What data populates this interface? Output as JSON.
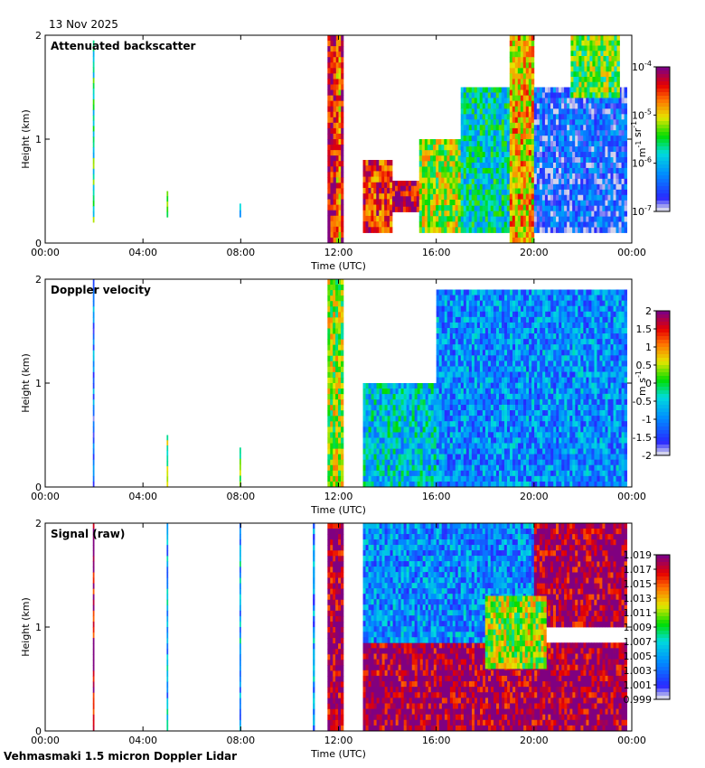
{
  "date_label": "13 Nov 2025",
  "footer": "Vehmasmaki 1.5 micron Doppler Lidar",
  "chart_data": [
    {
      "type": "heatmap",
      "title": "Attenuated backscatter",
      "xlabel": "Time (UTC)",
      "ylabel": "Height (km)",
      "x_ticks": [
        "00:00",
        "04:00",
        "08:00",
        "12:00",
        "16:00",
        "20:00",
        "00:00"
      ],
      "xlim_hours": [
        0,
        24
      ],
      "y_ticks": [
        "0",
        "1",
        "2"
      ],
      "ylim_km": [
        0,
        2
      ],
      "colorbar": {
        "scale": "log",
        "label": "m-1 sr-1",
        "label_base": [
          "m",
          "sr"
        ],
        "label_exp": [
          "-1",
          "-1"
        ],
        "ticks": [
          {
            "base": "10",
            "exp": "-4",
            "value": 0.0001
          },
          {
            "base": "10",
            "exp": "-5",
            "value": 1e-05
          },
          {
            "base": "10",
            "exp": "-6",
            "value": 1e-06
          },
          {
            "base": "10",
            "exp": "-7",
            "value": 1e-07
          }
        ]
      },
      "blocks": [
        {
          "t0": 1.95,
          "t1": 2.0,
          "h0": 0.2,
          "h1": 1.95,
          "v": 0.45
        },
        {
          "t0": 4.97,
          "t1": 5.02,
          "h0": 0.25,
          "h1": 0.5,
          "v": 0.6
        },
        {
          "t0": 7.95,
          "t1": 8.0,
          "h0": 0.25,
          "h1": 0.38,
          "v": 0.3
        },
        {
          "t0": 11.55,
          "t1": 11.9,
          "h0": 0,
          "h1": 2,
          "v": 0.92
        },
        {
          "t0": 11.9,
          "t1": 12.1,
          "h0": 0,
          "h1": 2,
          "v": 0.75
        },
        {
          "t0": 12.1,
          "t1": 12.2,
          "h0": 0,
          "h1": 2,
          "v": 0.95
        },
        {
          "t0": 13.0,
          "t1": 14.2,
          "h0": 0.1,
          "h1": 0.8,
          "v": 0.85
        },
        {
          "t0": 14.2,
          "t1": 15.3,
          "h0": 0.3,
          "h1": 0.6,
          "v": 0.95
        },
        {
          "t0": 15.3,
          "t1": 17.0,
          "h0": 0.1,
          "h1": 1.0,
          "v": 0.6
        },
        {
          "t0": 17.0,
          "t1": 19.0,
          "h0": 0.1,
          "h1": 1.5,
          "v": 0.4
        },
        {
          "t0": 19.0,
          "t1": 20.0,
          "h0": 0.0,
          "h1": 2.0,
          "v": 0.7
        },
        {
          "t0": 20.0,
          "t1": 23.8,
          "h0": 0.1,
          "h1": 1.5,
          "v": 0.15
        },
        {
          "t0": 21.5,
          "t1": 23.5,
          "h0": 1.4,
          "h1": 2.0,
          "v": 0.55
        }
      ]
    },
    {
      "type": "heatmap",
      "title": "Doppler velocity",
      "xlabel": "Time (UTC)",
      "ylabel": "Height (km)",
      "x_ticks": [
        "00:00",
        "04:00",
        "08:00",
        "12:00",
        "16:00",
        "20:00",
        "00:00"
      ],
      "xlim_hours": [
        0,
        24
      ],
      "y_ticks": [
        "0",
        "1",
        "2"
      ],
      "ylim_km": [
        0,
        2
      ],
      "colorbar": {
        "scale": "linear",
        "label": "m s-1",
        "label_base": [
          "m",
          "s"
        ],
        "label_exp": [
          "",
          "-1"
        ],
        "vmin": -2,
        "vmax": 2,
        "ticks": [
          "2",
          "1.5",
          "1",
          "0.5",
          "0",
          "-0.5",
          "-1",
          "-1.5",
          "-2"
        ]
      },
      "blocks": [
        {
          "t0": 1.95,
          "t1": 2.0,
          "h0": 0.0,
          "h1": 2.0,
          "v": 0.2
        },
        {
          "t0": 4.97,
          "t1": 5.02,
          "h0": 0.0,
          "h1": 0.5,
          "v": 0.55
        },
        {
          "t0": 7.95,
          "t1": 8.0,
          "h0": 0.0,
          "h1": 0.38,
          "v": 0.6
        },
        {
          "t0": 11.55,
          "t1": 12.2,
          "h0": 0,
          "h1": 2,
          "v": 0.6
        },
        {
          "t0": 13.0,
          "t1": 16.0,
          "h0": 0.0,
          "h1": 1.0,
          "v": 0.35
        },
        {
          "t0": 16.0,
          "t1": 23.8,
          "h0": 0.0,
          "h1": 1.9,
          "v": 0.25
        }
      ]
    },
    {
      "type": "heatmap",
      "title": "Signal (raw)",
      "xlabel": "Time (UTC)",
      "ylabel": "Height (km)",
      "x_ticks": [
        "00:00",
        "04:00",
        "08:00",
        "12:00",
        "16:00",
        "20:00",
        "00:00"
      ],
      "xlim_hours": [
        0,
        24
      ],
      "y_ticks": [
        "0",
        "1",
        "2"
      ],
      "ylim_km": [
        0,
        2
      ],
      "colorbar": {
        "scale": "linear",
        "vmin": 0.999,
        "vmax": 1.019,
        "ticks": [
          "1.019",
          "1.017",
          "1.015",
          "1.013",
          "1.011",
          "1.009",
          "1.007",
          "1.005",
          "1.003",
          "1.001",
          "0.999"
        ]
      },
      "blocks": [
        {
          "t0": 1.95,
          "t1": 2.0,
          "h0": 0.0,
          "h1": 2.0,
          "v": 0.95
        },
        {
          "t0": 4.97,
          "t1": 5.02,
          "h0": 0.0,
          "h1": 2.0,
          "v": 0.3
        },
        {
          "t0": 7.95,
          "t1": 8.0,
          "h0": 0.0,
          "h1": 2.0,
          "v": 0.3
        },
        {
          "t0": 10.95,
          "t1": 11.02,
          "h0": 0.0,
          "h1": 2.0,
          "v": 0.25
        },
        {
          "t0": 11.55,
          "t1": 12.2,
          "h0": 0,
          "h1": 2,
          "v": 0.97
        },
        {
          "t0": 13.0,
          "t1": 23.8,
          "h0": 0.0,
          "h1": 0.85,
          "v": 0.97
        },
        {
          "t0": 13.0,
          "t1": 20.0,
          "h0": 0.85,
          "h1": 2.0,
          "v": 0.25
        },
        {
          "t0": 20.0,
          "t1": 23.8,
          "h0": 1.0,
          "h1": 2.0,
          "v": 0.97
        },
        {
          "t0": 18.0,
          "t1": 20.5,
          "h0": 0.6,
          "h1": 1.3,
          "v": 0.6
        }
      ]
    }
  ]
}
